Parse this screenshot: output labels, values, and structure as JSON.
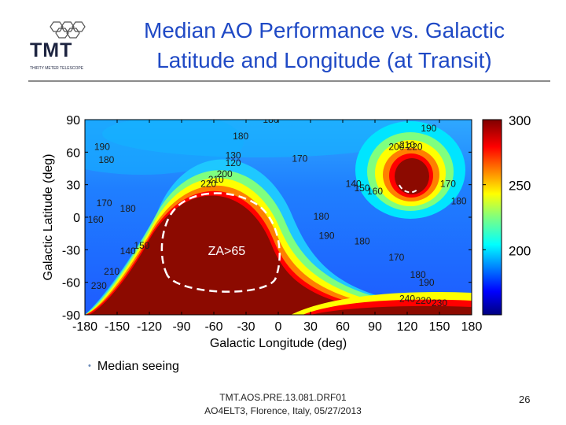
{
  "header": {
    "logo_text": "TMT",
    "logo_subtext": "THIRTY METER TELESCOPE",
    "title_line1": "Median AO Performance vs. Galactic",
    "title_line2": "Latitude and Longitude (at Transit)"
  },
  "chart_data": {
    "type": "heatmap",
    "title": "",
    "xlabel": "Galactic Longitude (deg)",
    "ylabel": "Galactic Latitude (deg)",
    "xlim": [
      -180,
      180
    ],
    "ylim": [
      -90,
      90
    ],
    "x_ticks": [
      "-180",
      "-150",
      "-120",
      "-90",
      "-60",
      "-30",
      "0",
      "30",
      "60",
      "90",
      "120",
      "150",
      "180"
    ],
    "y_ticks": [
      "90",
      "60",
      "30",
      "0",
      "-30",
      "-60",
      "-90"
    ],
    "colorbar": {
      "ticks": [
        "300",
        "250",
        "200"
      ],
      "range": [
        150,
        300
      ]
    },
    "contour_labels": [
      {
        "text": "180",
        "x": -7,
        "y": 87
      },
      {
        "text": "190",
        "x": 140,
        "y": 79
      },
      {
        "text": "180",
        "x": -35,
        "y": 72
      },
      {
        "text": "190",
        "x": -164,
        "y": 62
      },
      {
        "text": "180",
        "x": -160,
        "y": 50
      },
      {
        "text": "170",
        "x": 20,
        "y": 51
      },
      {
        "text": "140",
        "x": 70,
        "y": 28
      },
      {
        "text": "150",
        "x": 78,
        "y": 24
      },
      {
        "text": "160",
        "x": 90,
        "y": 21
      },
      {
        "text": "170",
        "x": 158,
        "y": 28
      },
      {
        "text": "180",
        "x": 168,
        "y": 12
      },
      {
        "text": "200",
        "x": 110,
        "y": 62
      },
      {
        "text": "210",
        "x": 120,
        "y": 64
      },
      {
        "text": "220",
        "x": 127,
        "y": 62
      },
      {
        "text": "180",
        "x": -140,
        "y": 5
      },
      {
        "text": "170",
        "x": -162,
        "y": 10
      },
      {
        "text": "160",
        "x": -170,
        "y": -5
      },
      {
        "text": "130",
        "x": -42,
        "y": 54
      },
      {
        "text": "120",
        "x": -42,
        "y": 47
      },
      {
        "text": "200",
        "x": -50,
        "y": 37
      },
      {
        "text": "210",
        "x": -58,
        "y": 32
      },
      {
        "text": "220",
        "x": -65,
        "y": 28
      },
      {
        "text": "180",
        "x": 40,
        "y": -2
      },
      {
        "text": "190",
        "x": 45,
        "y": -20
      },
      {
        "text": "180",
        "x": 78,
        "y": -25
      },
      {
        "text": "170",
        "x": 110,
        "y": -40
      },
      {
        "text": "180",
        "x": 130,
        "y": -56
      },
      {
        "text": "190",
        "x": 138,
        "y": -63
      },
      {
        "text": "150",
        "x": -127,
        "y": -29
      },
      {
        "text": "140",
        "x": -140,
        "y": -34
      },
      {
        "text": "210",
        "x": -155,
        "y": -53
      },
      {
        "text": "230",
        "x": -167,
        "y": -66
      },
      {
        "text": "240",
        "x": 120,
        "y": -78
      },
      {
        "text": "220",
        "x": 135,
        "y": -80
      },
      {
        "text": "230",
        "x": 150,
        "y": -82
      }
    ],
    "annotations": [
      {
        "text": "ZA>65",
        "x": -48,
        "y": -35
      }
    ]
  },
  "bullet_text": "Median seeing",
  "footer": {
    "line1": "TMT.AOS.PRE.13.081.DRF01",
    "line2": "AO4ELT3, Florence, Italy, 05/27/2013"
  },
  "page_number": "26"
}
